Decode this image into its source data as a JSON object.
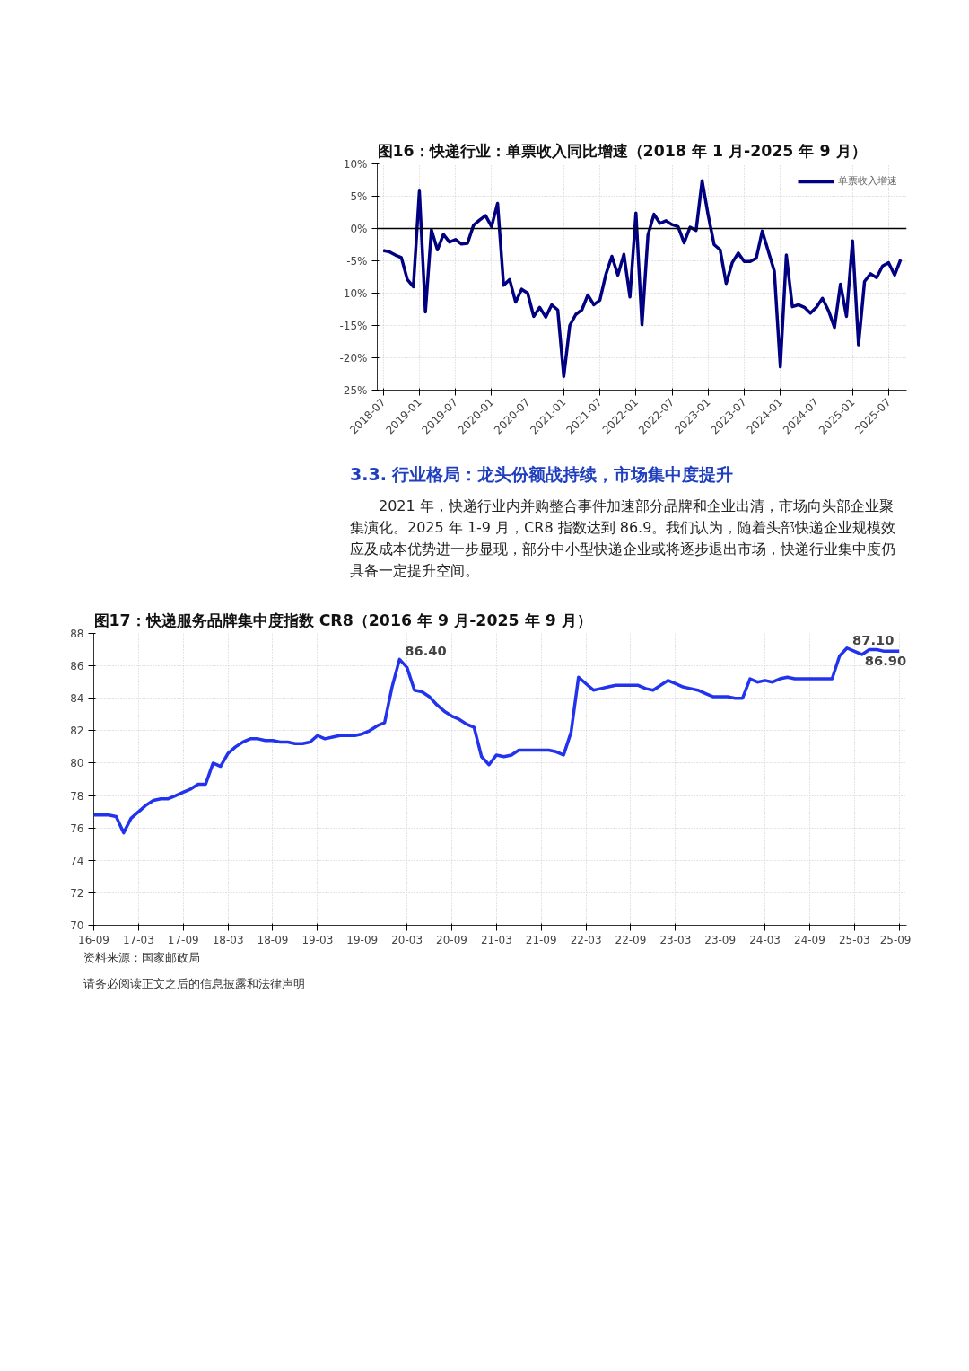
{
  "chart_data": [
    {
      "type": "line",
      "title": "图16：快递行业：单票收入同比增速（2018 年 1 月-2025 年 9 月）",
      "x": [
        "2018-07",
        "2018-08",
        "2018-09",
        "2018-10",
        "2018-11",
        "2018-12",
        "2019-01",
        "2019-02",
        "2019-03",
        "2019-04",
        "2019-05",
        "2019-06",
        "2019-07",
        "2019-08",
        "2019-09",
        "2019-10",
        "2019-11",
        "2019-12",
        "2020-01",
        "2020-02",
        "2020-03",
        "2020-04",
        "2020-05",
        "2020-06",
        "2020-07",
        "2020-08",
        "2020-09",
        "2020-10",
        "2020-11",
        "2020-12",
        "2021-01",
        "2021-02",
        "2021-03",
        "2021-04",
        "2021-05",
        "2021-06",
        "2021-07",
        "2021-08",
        "2021-09",
        "2021-10",
        "2021-11",
        "2021-12",
        "2022-01",
        "2022-02",
        "2022-03",
        "2022-04",
        "2022-05",
        "2022-06",
        "2022-07",
        "2022-08",
        "2022-09",
        "2022-10",
        "2022-11",
        "2022-12",
        "2023-01",
        "2023-02",
        "2023-03",
        "2023-04",
        "2023-05",
        "2023-06",
        "2023-07",
        "2023-08",
        "2023-09",
        "2023-10",
        "2023-11",
        "2023-12",
        "2024-01",
        "2024-02",
        "2024-03",
        "2024-04",
        "2024-05",
        "2024-06",
        "2024-07",
        "2024-08",
        "2024-09",
        "2024-10",
        "2024-11",
        "2024-12",
        "2025-01",
        "2025-02",
        "2025-03",
        "2025-04",
        "2025-05",
        "2025-06",
        "2025-07",
        "2025-08",
        "2025-09"
      ],
      "series": [
        {
          "name": "单票收入增速",
          "color": "#000080",
          "values": [
            -3.4,
            -3.6,
            -4.1,
            -4.5,
            -7.9,
            -9.0,
            5.8,
            -12.9,
            -0.2,
            -3.3,
            -0.9,
            -2.1,
            -1.7,
            -2.4,
            -2.3,
            0.5,
            1.3,
            2.0,
            0.3,
            3.9,
            -8.8,
            -7.9,
            -11.4,
            -9.4,
            -10.0,
            -13.6,
            -12.2,
            -13.7,
            -11.8,
            -12.6,
            -22.9,
            -15.0,
            -13.3,
            -12.6,
            -10.3,
            -11.8,
            -11.1,
            -7.1,
            -4.3,
            -7.2,
            -4.0,
            -10.6,
            2.4,
            -14.9,
            -1.0,
            2.2,
            0.8,
            1.2,
            0.6,
            0.3,
            -2.2,
            0.2,
            -0.3,
            7.4,
            2.1,
            -2.5,
            -3.3,
            -8.5,
            -5.3,
            -3.8,
            -5.1,
            -5.1,
            -4.6,
            -0.4,
            -3.5,
            -6.6,
            -21.4,
            -4.1,
            -12.1,
            -11.8,
            -12.2,
            -13.1,
            -12.2,
            -10.8,
            -12.7,
            -15.3,
            -8.6,
            -13.6,
            -1.9,
            -18.0,
            -8.2,
            -7.0,
            -7.6,
            -5.8,
            -5.3,
            -7.2,
            -4.8
          ]
        }
      ],
      "xlim": [
        "2018-06",
        "2025-10"
      ],
      "xticks": [
        {
          "value": "2018-07",
          "label": "2018-07"
        },
        {
          "value": "2019-01",
          "label": "2019-01"
        },
        {
          "value": "2019-07",
          "label": "2019-07"
        },
        {
          "value": "2020-01",
          "label": "2020-01"
        },
        {
          "value": "2020-07",
          "label": "2020-07"
        },
        {
          "value": "2021-01",
          "label": "2021-01"
        },
        {
          "value": "2021-07",
          "label": "2021-07"
        },
        {
          "value": "2022-01",
          "label": "2022-01"
        },
        {
          "value": "2022-07",
          "label": "2022-07"
        },
        {
          "value": "2023-01",
          "label": "2023-01"
        },
        {
          "value": "2023-07",
          "label": "2023-07"
        },
        {
          "value": "2024-01",
          "label": "2024-01"
        },
        {
          "value": "2024-07",
          "label": "2024-07"
        },
        {
          "value": "2025-01",
          "label": "2025-01"
        },
        {
          "value": "2025-07",
          "label": "2025-07"
        }
      ],
      "ylim": [
        -25,
        10
      ],
      "yticks": [
        {
          "value": -25,
          "label": "-25%"
        },
        {
          "value": -20,
          "label": "-20%"
        },
        {
          "value": -15,
          "label": "-15%"
        },
        {
          "value": -10,
          "label": "-10%"
        },
        {
          "value": -5,
          "label": "-5%"
        },
        {
          "value": 0,
          "label": "0%"
        },
        {
          "value": 5,
          "label": "5%"
        },
        {
          "value": 10,
          "label": "10%"
        }
      ],
      "ref_lines": [
        {
          "axis": "y",
          "value": 0,
          "color": "#000000"
        }
      ],
      "grid": true,
      "legend": "top right",
      "annotations": [
        "3.3.  行业格局：龙头份额战持续，市场集中度提升",
        "2021 年，快递行业内并购整合事件加速部分品牌和企业出清，市场向头部企业聚集演化。2025 年 1-9 月，CR8 指数达到 86.9。我们认为，随着头部快递企业规模效应及成本优势进一步显现，部分中小型快递企业或将逐步退出市场，快递行业集中度仍具备一定提升空间。"
      ]
    },
    {
      "type": "line",
      "title": "图17：快递服务品牌集中度指数 CR8（2016 年 9 月-2025 年 9 月）",
      "x": [
        "2016-09",
        "2016-10",
        "2016-11",
        "2016-12",
        "2017-01",
        "2017-02",
        "2017-03",
        "2017-04",
        "2017-05",
        "2017-06",
        "2017-07",
        "2017-08",
        "2017-09",
        "2017-10",
        "2017-11",
        "2017-12",
        "2018-01",
        "2018-02",
        "2018-03",
        "2018-04",
        "2018-05",
        "2018-06",
        "2018-07",
        "2018-08",
        "2018-09",
        "2018-10",
        "2018-11",
        "2018-12",
        "2019-01",
        "2019-02",
        "2019-03",
        "2019-04",
        "2019-05",
        "2019-06",
        "2019-07",
        "2019-08",
        "2019-09",
        "2019-10",
        "2019-11",
        "2019-12",
        "2020-01",
        "2020-02",
        "2020-03",
        "2020-04",
        "2020-05",
        "2020-06",
        "2020-07",
        "2020-08",
        "2020-09",
        "2020-10",
        "2020-11",
        "2020-12",
        "2021-01",
        "2021-02",
        "2021-03",
        "2021-04",
        "2021-05",
        "2021-06",
        "2021-07",
        "2021-08",
        "2021-09",
        "2021-10",
        "2021-11",
        "2021-12",
        "2022-01",
        "2022-02",
        "2022-03",
        "2022-04",
        "2022-05",
        "2022-06",
        "2022-07",
        "2022-08",
        "2022-09",
        "2022-10",
        "2022-11",
        "2022-12",
        "2023-01",
        "2023-02",
        "2023-03",
        "2023-04",
        "2023-05",
        "2023-06",
        "2023-07",
        "2023-08",
        "2023-09",
        "2023-10",
        "2023-11",
        "2023-12",
        "2024-01",
        "2024-02",
        "2024-03",
        "2024-04",
        "2024-05",
        "2024-06",
        "2024-07",
        "2024-08",
        "2024-09",
        "2024-10",
        "2024-11",
        "2024-12",
        "2025-01",
        "2025-02",
        "2025-03",
        "2025-04",
        "2025-05",
        "2025-06",
        "2025-07",
        "2025-08",
        "2025-09"
      ],
      "series": [
        {
          "color": "#2233ee",
          "values": [
            76.8,
            76.8,
            76.8,
            76.7,
            75.7,
            76.6,
            77.0,
            77.4,
            77.7,
            77.8,
            77.8,
            78.0,
            78.2,
            78.4,
            78.7,
            78.7,
            80.0,
            79.8,
            80.6,
            81.0,
            81.3,
            81.5,
            81.5,
            81.4,
            81.4,
            81.3,
            81.3,
            81.2,
            81.2,
            81.3,
            81.7,
            81.5,
            81.6,
            81.7,
            81.7,
            81.7,
            81.8,
            82.0,
            82.3,
            82.5,
            84.7,
            86.4,
            85.9,
            84.5,
            84.4,
            84.1,
            83.6,
            83.2,
            82.9,
            82.7,
            82.4,
            82.2,
            80.4,
            79.9,
            80.5,
            80.4,
            80.5,
            80.8,
            80.8,
            80.8,
            80.8,
            80.8,
            80.7,
            80.5,
            81.9,
            85.3,
            84.9,
            84.5,
            84.6,
            84.7,
            84.8,
            84.8,
            84.8,
            84.8,
            84.6,
            84.5,
            84.8,
            85.1,
            84.9,
            84.7,
            84.6,
            84.5,
            84.3,
            84.1,
            84.1,
            84.1,
            84.0,
            84.0,
            85.2,
            85.0,
            85.1,
            85.0,
            85.2,
            85.3,
            85.2,
            85.2,
            85.2,
            85.2,
            85.2,
            85.2,
            86.6,
            87.1,
            86.9,
            86.7,
            87.0,
            87.0,
            86.9,
            86.9,
            86.9
          ]
        }
      ],
      "xlim": [
        "2016-09",
        "2025-10"
      ],
      "xticks": [
        {
          "value": "2016-09",
          "label": "16-09"
        },
        {
          "value": "2017-03",
          "label": "17-03"
        },
        {
          "value": "2017-09",
          "label": "17-09"
        },
        {
          "value": "2018-03",
          "label": "18-03"
        },
        {
          "value": "2018-09",
          "label": "18-09"
        },
        {
          "value": "2019-03",
          "label": "19-03"
        },
        {
          "value": "2019-09",
          "label": "19-09"
        },
        {
          "value": "2020-03",
          "label": "20-03"
        },
        {
          "value": "2020-09",
          "label": "20-09"
        },
        {
          "value": "2021-03",
          "label": "21-03"
        },
        {
          "value": "2021-09",
          "label": "21-09"
        },
        {
          "value": "2022-03",
          "label": "22-03"
        },
        {
          "value": "2022-09",
          "label": "22-09"
        },
        {
          "value": "2023-03",
          "label": "23-03"
        },
        {
          "value": "2023-09",
          "label": "23-09"
        },
        {
          "value": "2024-03",
          "label": "24-03"
        },
        {
          "value": "2024-09",
          "label": "24-09"
        },
        {
          "value": "2025-03",
          "label": "25-03"
        },
        {
          "value": "2025-09",
          "label": "25-09"
        }
      ],
      "ylim": [
        70,
        88
      ],
      "yticks": [
        70,
        72,
        74,
        76,
        78,
        80,
        82,
        84,
        86,
        88
      ],
      "grid": true,
      "annotations": [
        {
          "text": "86.40",
          "x": "2020-02",
          "y": 86.4
        },
        {
          "text": "87.10",
          "x": "2025-02",
          "y": 87.1
        },
        {
          "text": "86.90",
          "x": "2025-09",
          "y": 86.9
        },
        "资料来源：国家邮政局",
        "请务必阅读正文之后的信息披露和法律声明"
      ]
    }
  ]
}
